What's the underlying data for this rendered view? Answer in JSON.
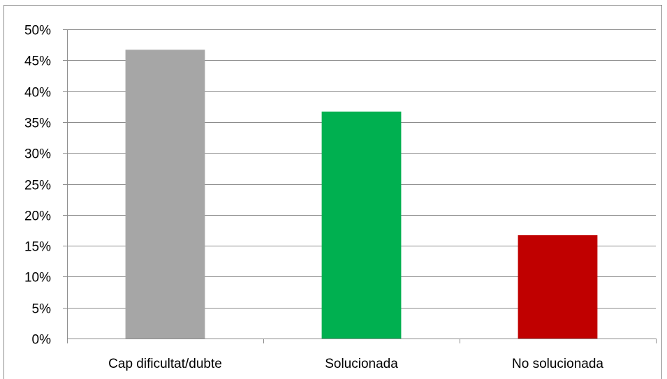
{
  "chart_data": {
    "type": "bar",
    "title": "",
    "xlabel": "",
    "ylabel": "",
    "categories": [
      "Cap dificultat/dubte",
      "Solucionada",
      "No solucionada"
    ],
    "values": [
      46.7,
      36.7,
      16.7
    ],
    "colors": [
      "#a6a6a6",
      "#00b050",
      "#c00000"
    ],
    "ylim": [
      0,
      50
    ],
    "ytick_step": 5,
    "ytick_suffix": "%",
    "ytick_labels": [
      "0%",
      "5%",
      "10%",
      "15%",
      "20%",
      "25%",
      "30%",
      "35%",
      "40%",
      "45%",
      "50%"
    ],
    "grid": true,
    "legend": "none"
  }
}
